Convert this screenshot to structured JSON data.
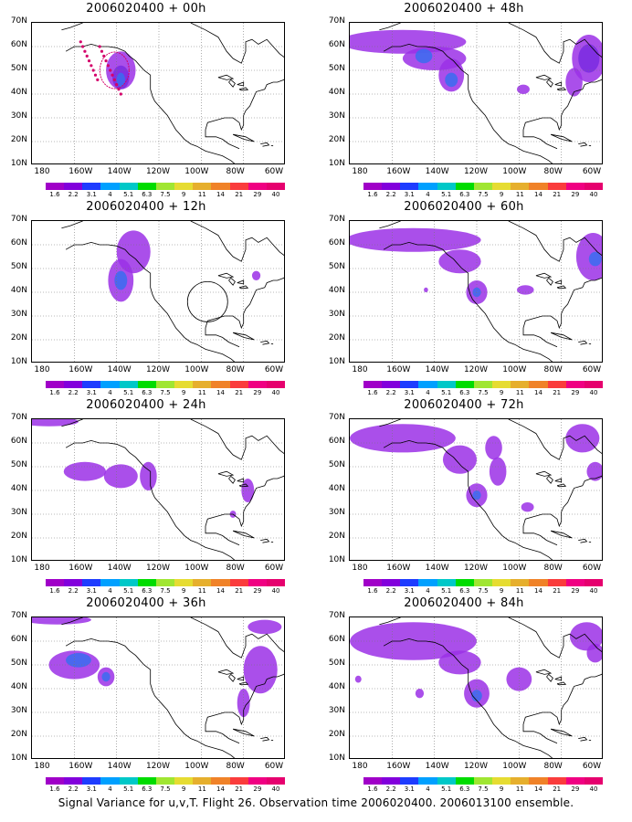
{
  "caption": "Signal Variance for u,v,T. Flight 26. Observation time 2006020400. 2006013100 ensemble.",
  "lat_labels": [
    "70N",
    "60N",
    "50N",
    "40N",
    "30N",
    "20N",
    "10N"
  ],
  "lon_labels": [
    "180",
    "160W",
    "140W",
    "120W",
    "100W",
    "80W",
    "60W"
  ],
  "colorbar": {
    "labels": [
      "1.6",
      "2.2",
      "3.1",
      "4",
      "5.1",
      "6.3",
      "7.5",
      "9",
      "11",
      "14",
      "21",
      "29",
      "40"
    ],
    "colors": [
      "#a000c8",
      "#8200dc",
      "#1e3cff",
      "#00a0ff",
      "#00c8c8",
      "#00dc00",
      "#a0e632",
      "#e6dc32",
      "#e6af2d",
      "#f08228",
      "#fa3c3c",
      "#f00082",
      "#e6006e"
    ]
  },
  "panels": [
    {
      "title": "2006020400 + 00h"
    },
    {
      "title": "2006020400 + 48h"
    },
    {
      "title": "2006020400 + 12h"
    },
    {
      "title": "2006020400 + 60h"
    },
    {
      "title": "2006020400 + 24h"
    },
    {
      "title": "2006020400 + 72h"
    },
    {
      "title": "2006020400 + 36h"
    },
    {
      "title": "2006020400 + 84h"
    }
  ]
}
